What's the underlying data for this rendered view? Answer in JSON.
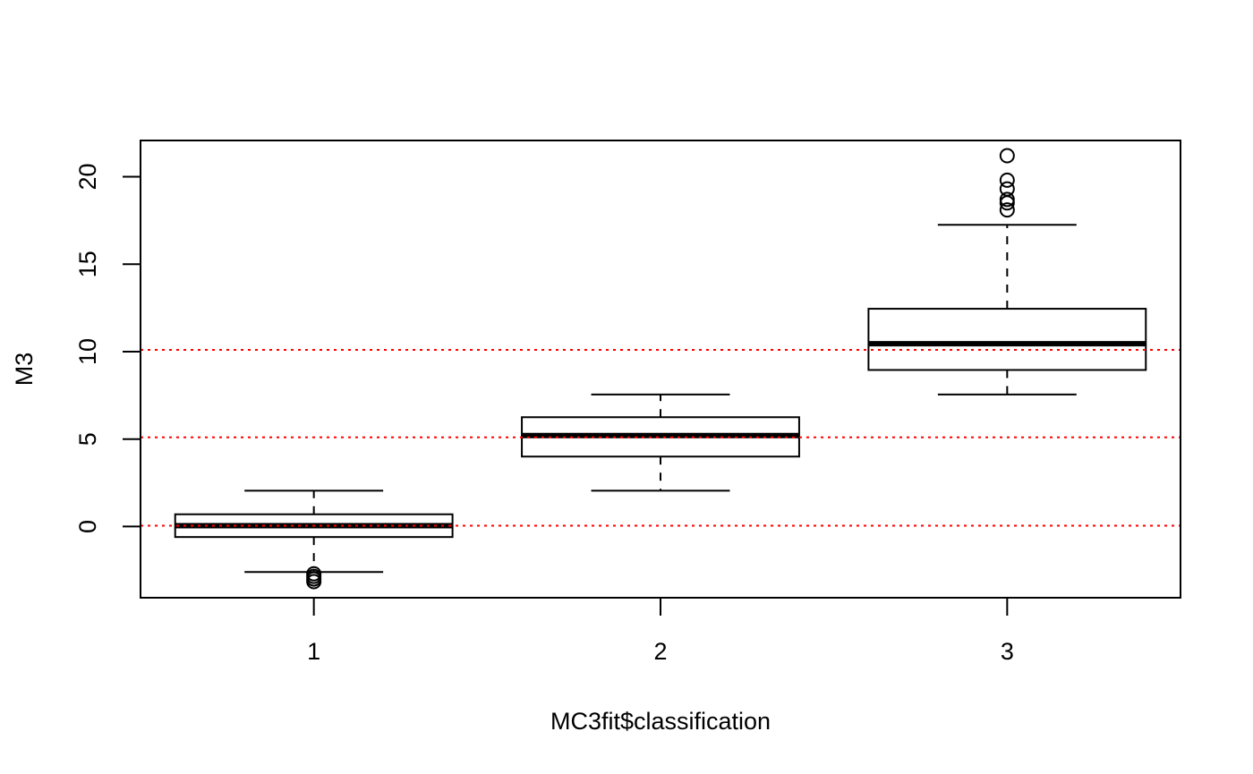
{
  "chart_data": {
    "type": "boxplot",
    "title": "",
    "xlabel": "MC3fit$classification",
    "ylabel": "M3",
    "xlim": [
      0.5,
      3.5
    ],
    "ylim": [
      -4.07,
      22.07
    ],
    "y_ticks": [
      0,
      5,
      10,
      15,
      20
    ],
    "grid": false,
    "categories": [
      "1",
      "2",
      "3"
    ],
    "boxes": [
      {
        "category": "1",
        "whisker_low": -2.6,
        "q1": -0.6,
        "median": 0.05,
        "q3": 0.7,
        "whisker_high": 2.05,
        "outliers": [
          -2.7,
          -2.85,
          -3.0,
          -3.15
        ]
      },
      {
        "category": "2",
        "whisker_low": 2.05,
        "q1": 4.0,
        "median": 5.2,
        "q3": 6.25,
        "whisker_high": 7.55,
        "outliers": []
      },
      {
        "category": "3",
        "whisker_low": 7.55,
        "q1": 8.95,
        "median": 10.45,
        "q3": 12.45,
        "whisker_high": 17.25,
        "outliers": [
          18.1,
          18.5,
          18.7,
          19.3,
          19.8,
          21.2
        ]
      }
    ],
    "reference_lines": [
      {
        "y": 0.05,
        "color": "#ff0000",
        "style": "dotted"
      },
      {
        "y": 5.1,
        "color": "#ff0000",
        "style": "dotted"
      },
      {
        "y": 10.1,
        "color": "#ff0000",
        "style": "dotted"
      }
    ],
    "colors": {
      "box_fill": "#ffffff",
      "stroke": "#000000",
      "reference": "#ff0000"
    }
  }
}
